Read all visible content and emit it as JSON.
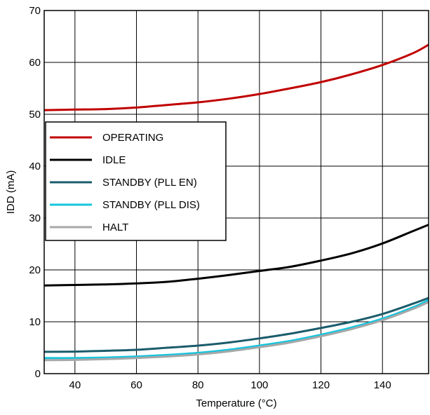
{
  "chart_data": {
    "type": "line",
    "title": "",
    "xlabel": "Temperature (°C)",
    "ylabel": "IDD (mA)",
    "xlim": [
      30,
      155
    ],
    "ylim": [
      0,
      70
    ],
    "xticks": [
      40,
      60,
      80,
      100,
      120,
      140
    ],
    "yticks": [
      0,
      10,
      20,
      30,
      40,
      50,
      60,
      70
    ],
    "grid": true,
    "legend_position": "upper-left",
    "series": [
      {
        "name": "OPERATING",
        "color": "#c00000",
        "x": [
          30,
          40,
          50,
          60,
          70,
          80,
          90,
          100,
          110,
          120,
          130,
          140,
          150,
          155
        ],
        "y": [
          50.8,
          50.9,
          51.0,
          51.3,
          51.8,
          52.3,
          53.0,
          53.9,
          55.0,
          56.2,
          57.7,
          59.5,
          61.8,
          63.4
        ]
      },
      {
        "name": "IDLE",
        "color": "#000000",
        "x": [
          30,
          40,
          50,
          60,
          70,
          80,
          90,
          100,
          110,
          120,
          130,
          140,
          150,
          155
        ],
        "y": [
          17.0,
          17.1,
          17.2,
          17.4,
          17.7,
          18.3,
          19.0,
          19.8,
          20.6,
          21.8,
          23.2,
          25.1,
          27.5,
          28.7
        ]
      },
      {
        "name": "STANDBY (PLL EN)",
        "color": "#1b5c6b",
        "x": [
          30,
          40,
          50,
          60,
          70,
          80,
          90,
          100,
          110,
          120,
          130,
          140,
          150,
          155
        ],
        "y": [
          4.2,
          4.25,
          4.4,
          4.6,
          5.0,
          5.4,
          6.0,
          6.8,
          7.7,
          8.8,
          10.0,
          11.5,
          13.5,
          14.6
        ]
      },
      {
        "name": "STANDBY (PLL DIS)",
        "color": "#18c4dd",
        "x": [
          30,
          40,
          50,
          60,
          70,
          80,
          90,
          100,
          110,
          120,
          130,
          140,
          150,
          155
        ],
        "y": [
          3.0,
          3.0,
          3.1,
          3.3,
          3.6,
          4.0,
          4.6,
          5.4,
          6.3,
          7.5,
          8.9,
          10.6,
          12.8,
          14.2
        ]
      },
      {
        "name": "HALT",
        "color": "#a8a8a8",
        "x": [
          30,
          40,
          50,
          60,
          70,
          80,
          90,
          100,
          110,
          120,
          130,
          140,
          150,
          155
        ],
        "y": [
          2.6,
          2.65,
          2.8,
          3.0,
          3.3,
          3.7,
          4.3,
          5.1,
          6.0,
          7.2,
          8.6,
          10.3,
          12.5,
          13.8
        ]
      }
    ]
  }
}
